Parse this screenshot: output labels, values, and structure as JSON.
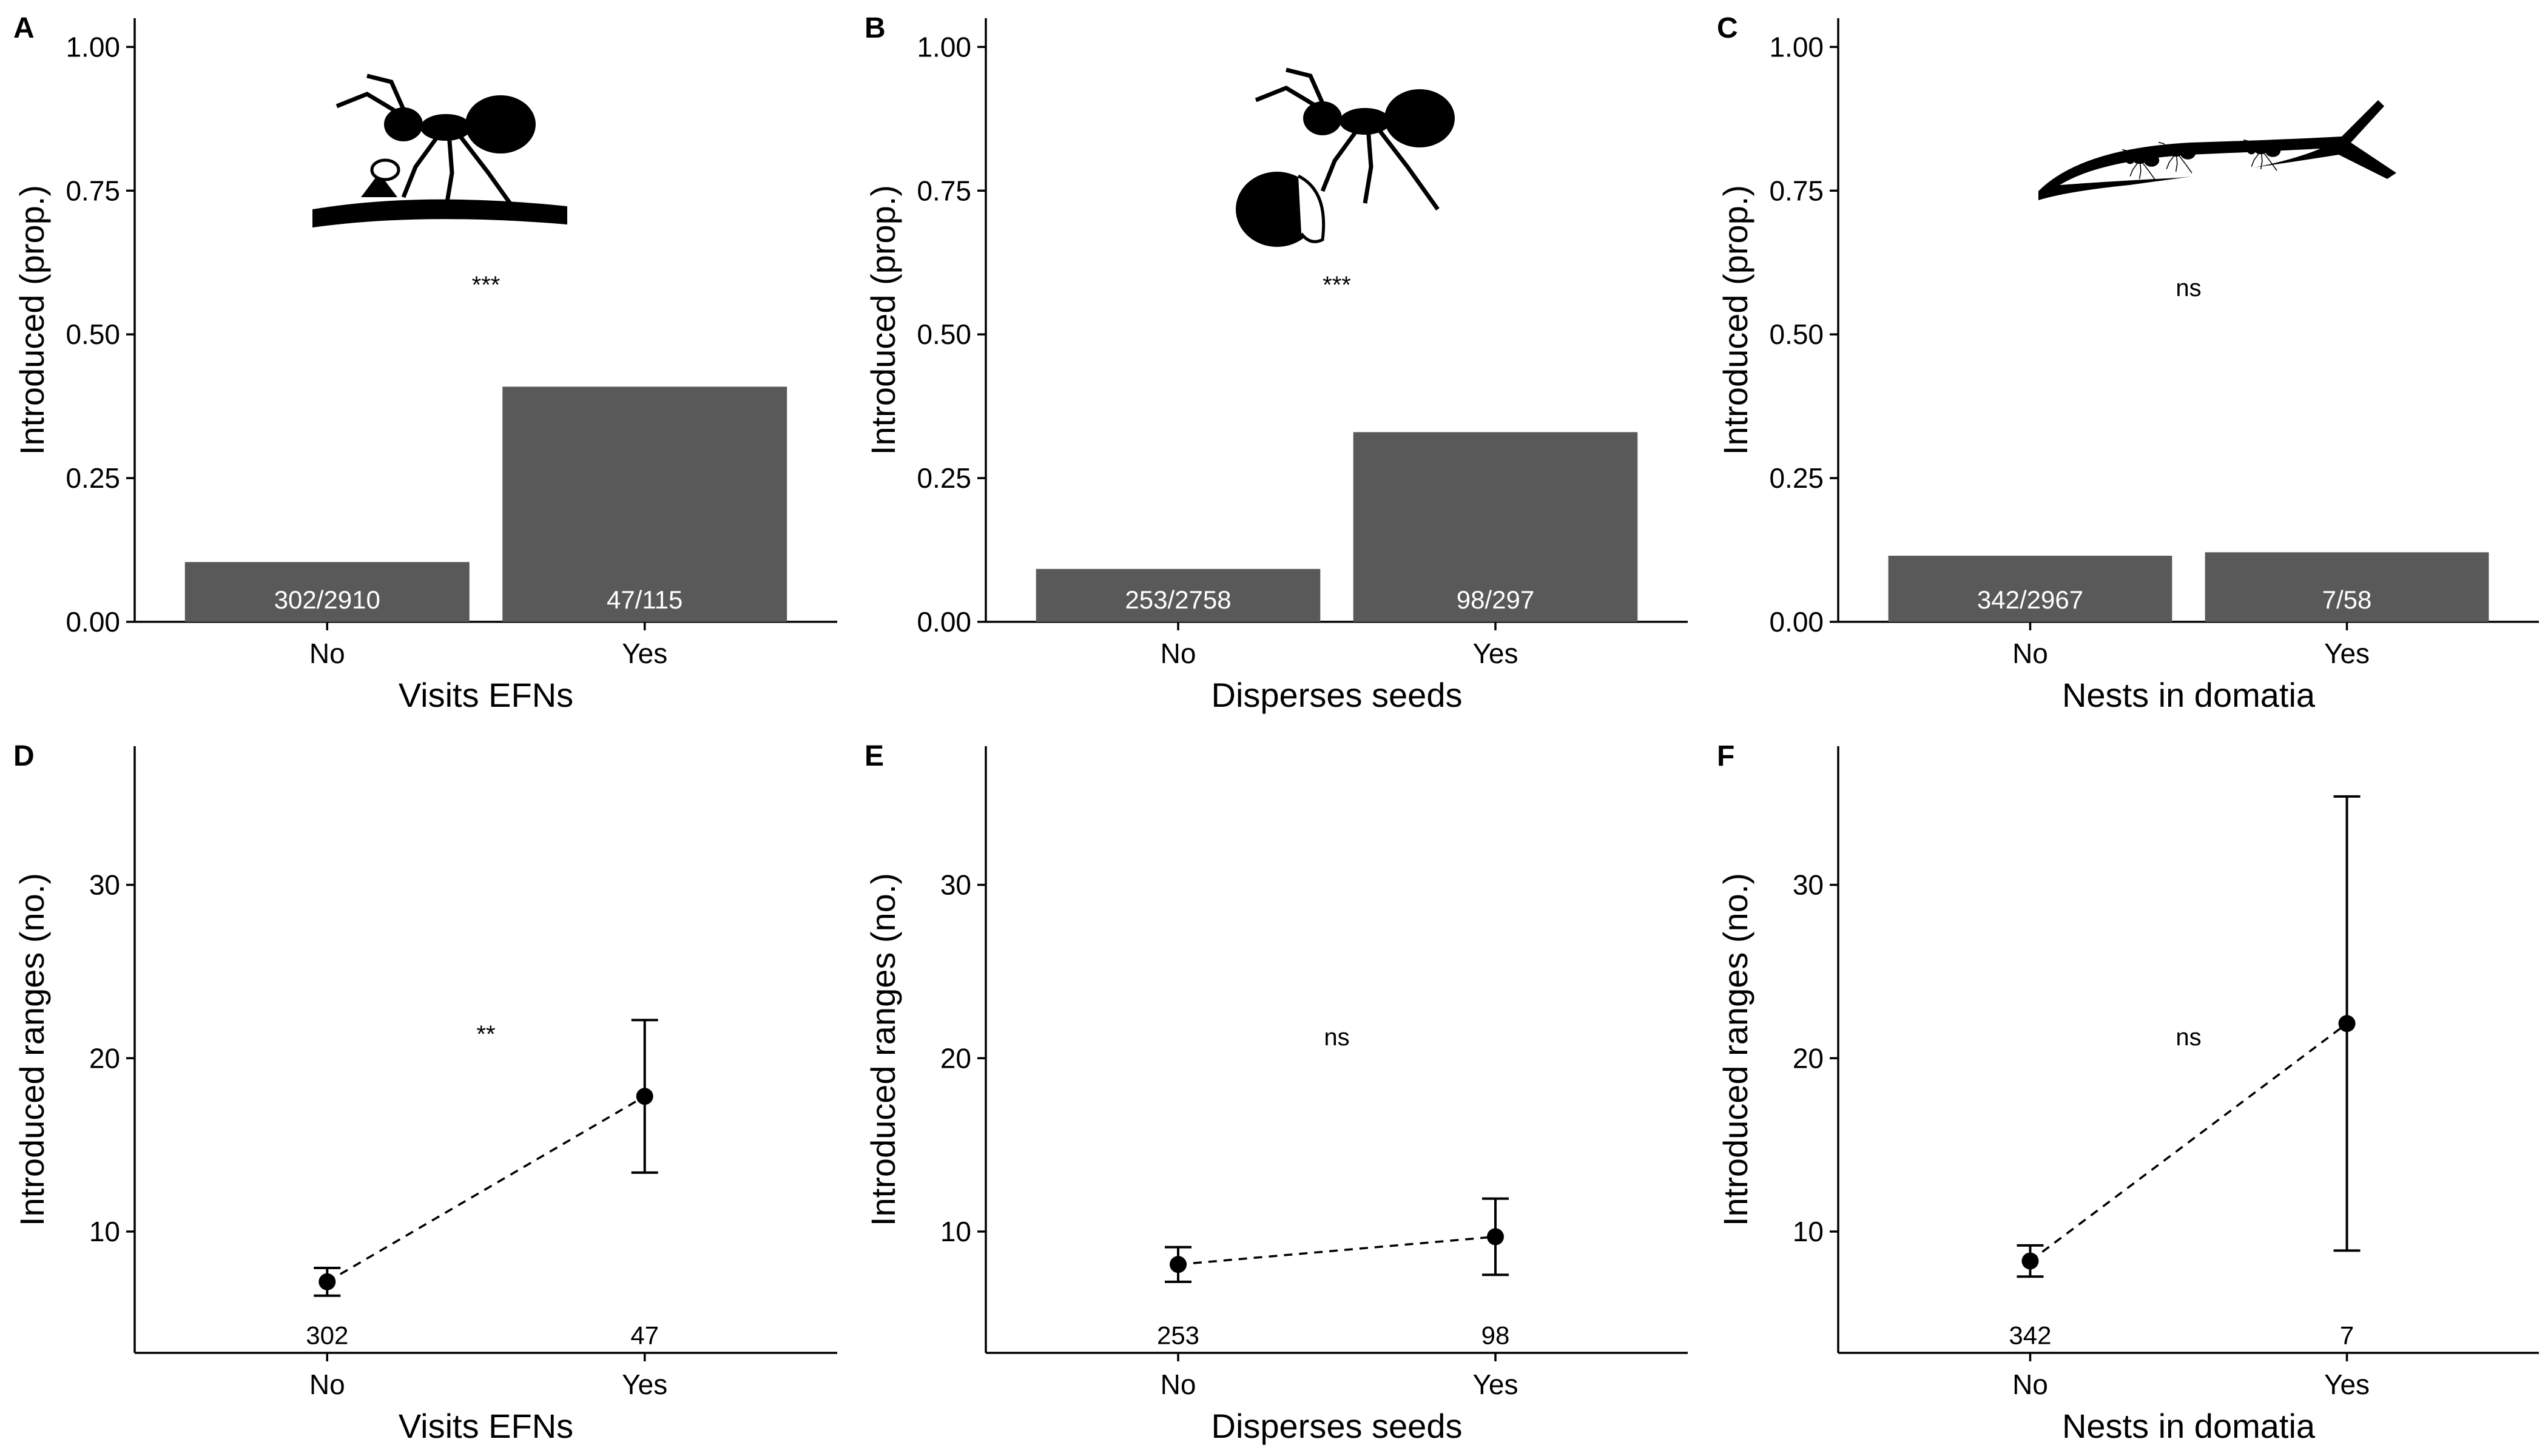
{
  "chart_data": [
    {
      "panel": "A",
      "type": "bar",
      "categories": [
        "No",
        "Yes"
      ],
      "values": [
        0.104,
        0.409
      ],
      "bar_labels": [
        "302/2910",
        "47/115"
      ],
      "annotation": "***",
      "xlabel": "Visits EFNs",
      "ylabel": "Introduced (prop.)",
      "ylim": [
        0,
        1.05
      ],
      "yticks": [
        "0.00",
        "0.25",
        "0.50",
        "0.75",
        "1.00"
      ],
      "ytick_values": [
        0,
        0.25,
        0.5,
        0.75,
        1.0
      ],
      "bar_color": "#595959",
      "icon": "ant-on-twig-with-efn"
    },
    {
      "panel": "B",
      "type": "bar",
      "categories": [
        "No",
        "Yes"
      ],
      "values": [
        0.092,
        0.33
      ],
      "bar_labels": [
        "253/2758",
        "98/297"
      ],
      "annotation": "***",
      "xlabel": "Disperses seeds",
      "ylabel": "Introduced (prop.)",
      "ylim": [
        0,
        1.05
      ],
      "yticks": [
        "0.00",
        "0.25",
        "0.50",
        "0.75",
        "1.00"
      ],
      "ytick_values": [
        0,
        0.25,
        0.5,
        0.75,
        1.0
      ],
      "bar_color": "#595959",
      "icon": "ant-carrying-seed"
    },
    {
      "panel": "C",
      "type": "bar",
      "categories": [
        "No",
        "Yes"
      ],
      "values": [
        0.115,
        0.121
      ],
      "bar_labels": [
        "342/2967",
        "7/58"
      ],
      "annotation": "ns",
      "xlabel": "Nests in domatia",
      "ylabel": "Introduced (prop.)",
      "ylim": [
        0,
        1.05
      ],
      "yticks": [
        "0.00",
        "0.25",
        "0.50",
        "0.75",
        "1.00"
      ],
      "ytick_values": [
        0,
        0.25,
        0.5,
        0.75,
        1.0
      ],
      "bar_color": "#595959",
      "icon": "ants-inside-hollow-stem"
    },
    {
      "panel": "D",
      "type": "scatter",
      "categories": [
        "No",
        "Yes"
      ],
      "values": [
        7.1,
        17.8
      ],
      "lower": [
        6.3,
        13.4
      ],
      "upper": [
        7.9,
        22.2
      ],
      "n_labels": [
        "302",
        "47"
      ],
      "annotation": "**",
      "xlabel": "Visits EFNs",
      "ylabel": "Introduced ranges (no.)",
      "ylim": [
        3,
        38
      ],
      "yticks": [
        "10",
        "20",
        "30"
      ],
      "ytick_values": [
        10,
        20,
        30
      ],
      "n_label_y": 4
    },
    {
      "panel": "E",
      "type": "scatter",
      "categories": [
        "No",
        "Yes"
      ],
      "values": [
        8.1,
        9.7
      ],
      "lower": [
        7.1,
        7.5
      ],
      "upper": [
        9.1,
        11.9
      ],
      "n_labels": [
        "253",
        "98"
      ],
      "annotation": "ns",
      "xlabel": "Disperses seeds",
      "ylabel": "Introduced ranges (no.)",
      "ylim": [
        3,
        38
      ],
      "yticks": [
        "10",
        "20",
        "30"
      ],
      "ytick_values": [
        10,
        20,
        30
      ],
      "n_label_y": 4
    },
    {
      "panel": "F",
      "type": "scatter",
      "categories": [
        "No",
        "Yes"
      ],
      "values": [
        8.3,
        22.0
      ],
      "lower": [
        7.4,
        8.9
      ],
      "upper": [
        9.2,
        35.1
      ],
      "n_labels": [
        "342",
        "7"
      ],
      "annotation": "ns",
      "xlabel": "Nests in domatia",
      "ylabel": "Introduced ranges (no.)",
      "ylim": [
        3,
        38
      ],
      "yticks": [
        "10",
        "20",
        "30"
      ],
      "ytick_values": [
        10,
        20,
        30
      ],
      "n_label_y": 4
    }
  ]
}
